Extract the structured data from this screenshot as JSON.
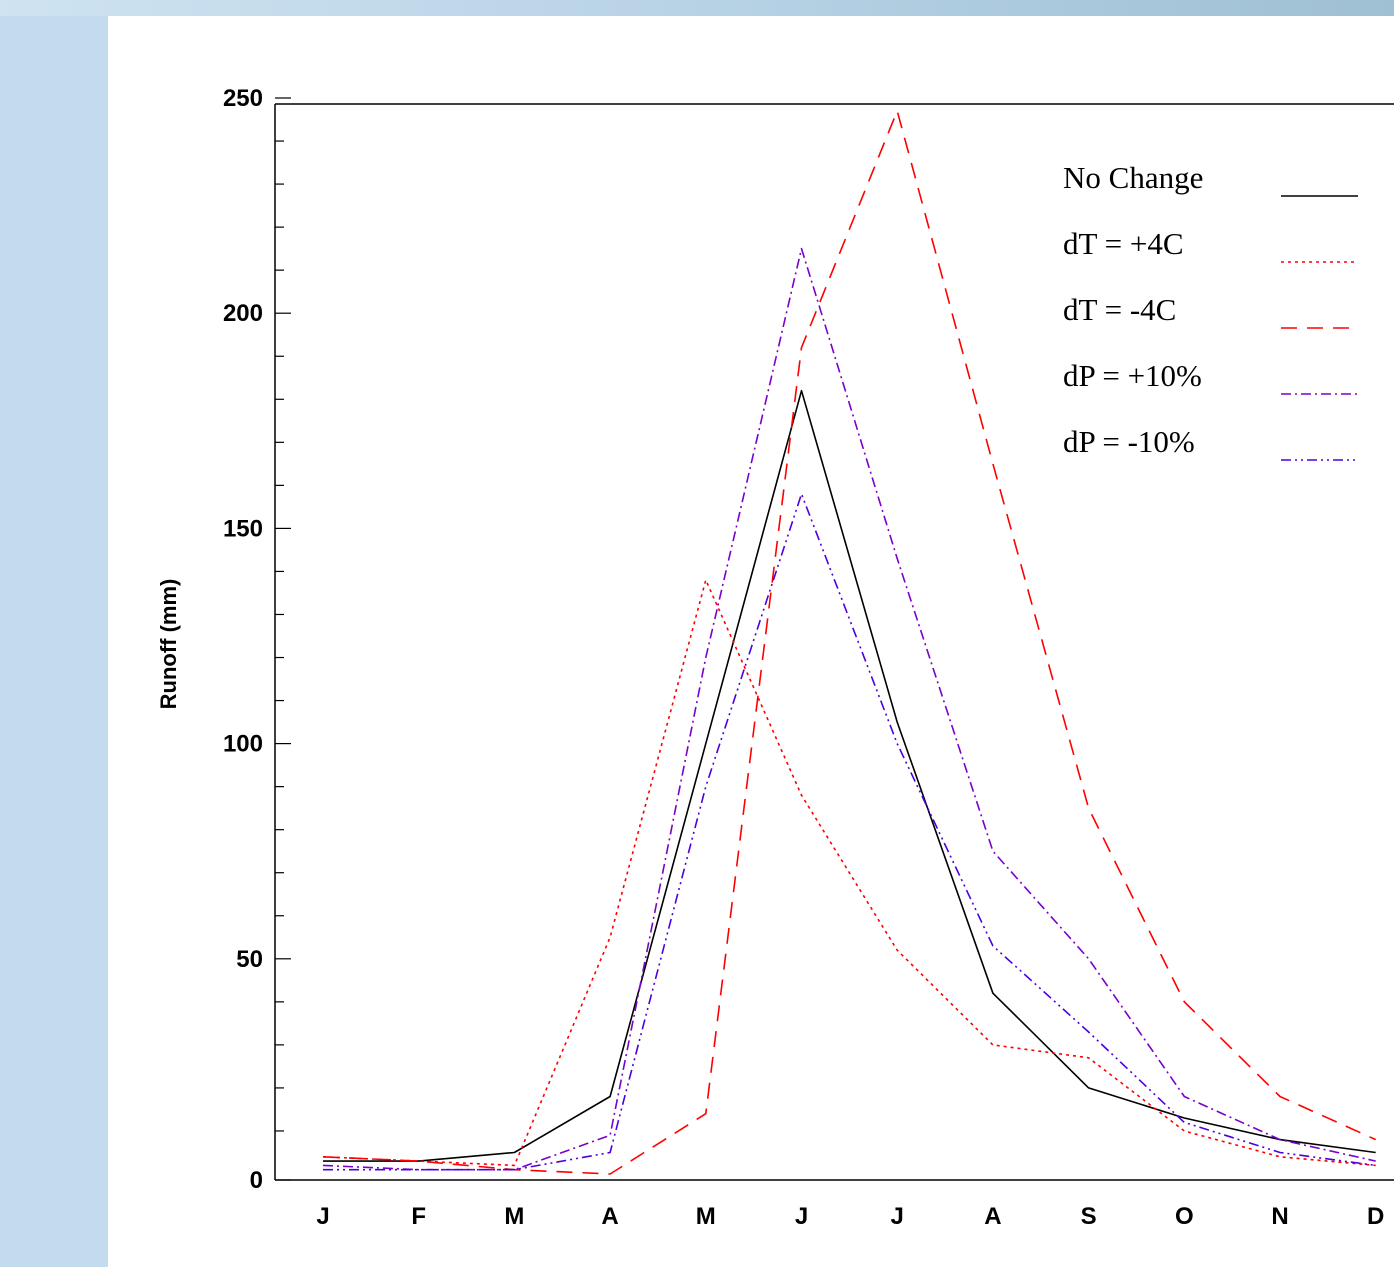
{
  "chart_data": {
    "type": "line",
    "title": "",
    "xlabel": "",
    "ylabel": "Runoff (mm)",
    "categories": [
      "J",
      "F",
      "M",
      "A",
      "M",
      "J",
      "J",
      "A",
      "S",
      "O",
      "N",
      "D"
    ],
    "ylim": [
      0,
      250
    ],
    "yticks": [
      0,
      50,
      100,
      150,
      200,
      250
    ],
    "grid": false,
    "legend_position": "top-right",
    "series": [
      {
        "name": "No Change",
        "color": "#000000",
        "dash": "solid",
        "values": [
          3,
          3,
          5,
          18,
          100,
          182,
          105,
          42,
          20,
          13,
          8,
          5
        ]
      },
      {
        "name": "dT =  +4C",
        "color": "#ff0000",
        "dash": "dotted",
        "values": [
          4,
          3,
          2,
          55,
          138,
          88,
          52,
          30,
          27,
          10,
          4,
          2
        ]
      },
      {
        "name": "dT =  -4C",
        "color": "#ff0000",
        "dash": "dashed",
        "values": [
          4,
          3,
          1,
          0,
          14,
          192,
          247,
          165,
          85,
          40,
          18,
          8
        ]
      },
      {
        "name": "dP = +10%",
        "color": "#7a00cc",
        "dash": "dashdot",
        "values": [
          2,
          1,
          1,
          9,
          120,
          215,
          143,
          75,
          50,
          18,
          8,
          3
        ]
      },
      {
        "name": "dP = -10%",
        "color": "#4b00e0",
        "dash": "dashdotdot",
        "values": [
          1,
          1,
          1,
          5,
          90,
          158,
          100,
          53,
          33,
          12,
          5,
          2
        ]
      }
    ]
  }
}
